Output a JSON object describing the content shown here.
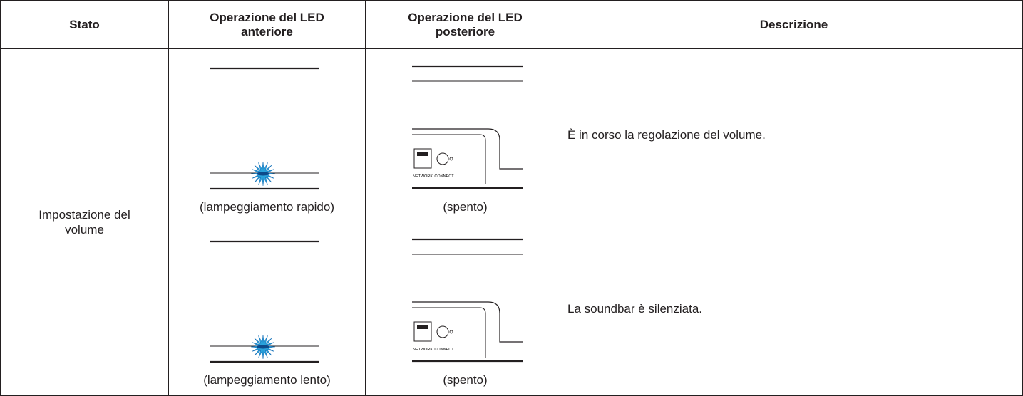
{
  "table": {
    "header": [
      "Stato",
      "Operazione del LED anteriore",
      "Operazione del LED posteriore",
      "Descrizione"
    ],
    "state": "Impostazione del volume",
    "rows": [
      {
        "front": "(lampeggiamento rapido)",
        "rear": "(spento)",
        "rear_labels": [
          "NETWORK",
          "CONNECT"
        ],
        "description": "È in corso la regolazione del volume."
      },
      {
        "front": "(lampeggiamento lento)",
        "rear": "(spento)",
        "rear_labels": [
          "NETWORK",
          "CONNECT"
        ],
        "description": "La soundbar è silenziata."
      }
    ]
  }
}
